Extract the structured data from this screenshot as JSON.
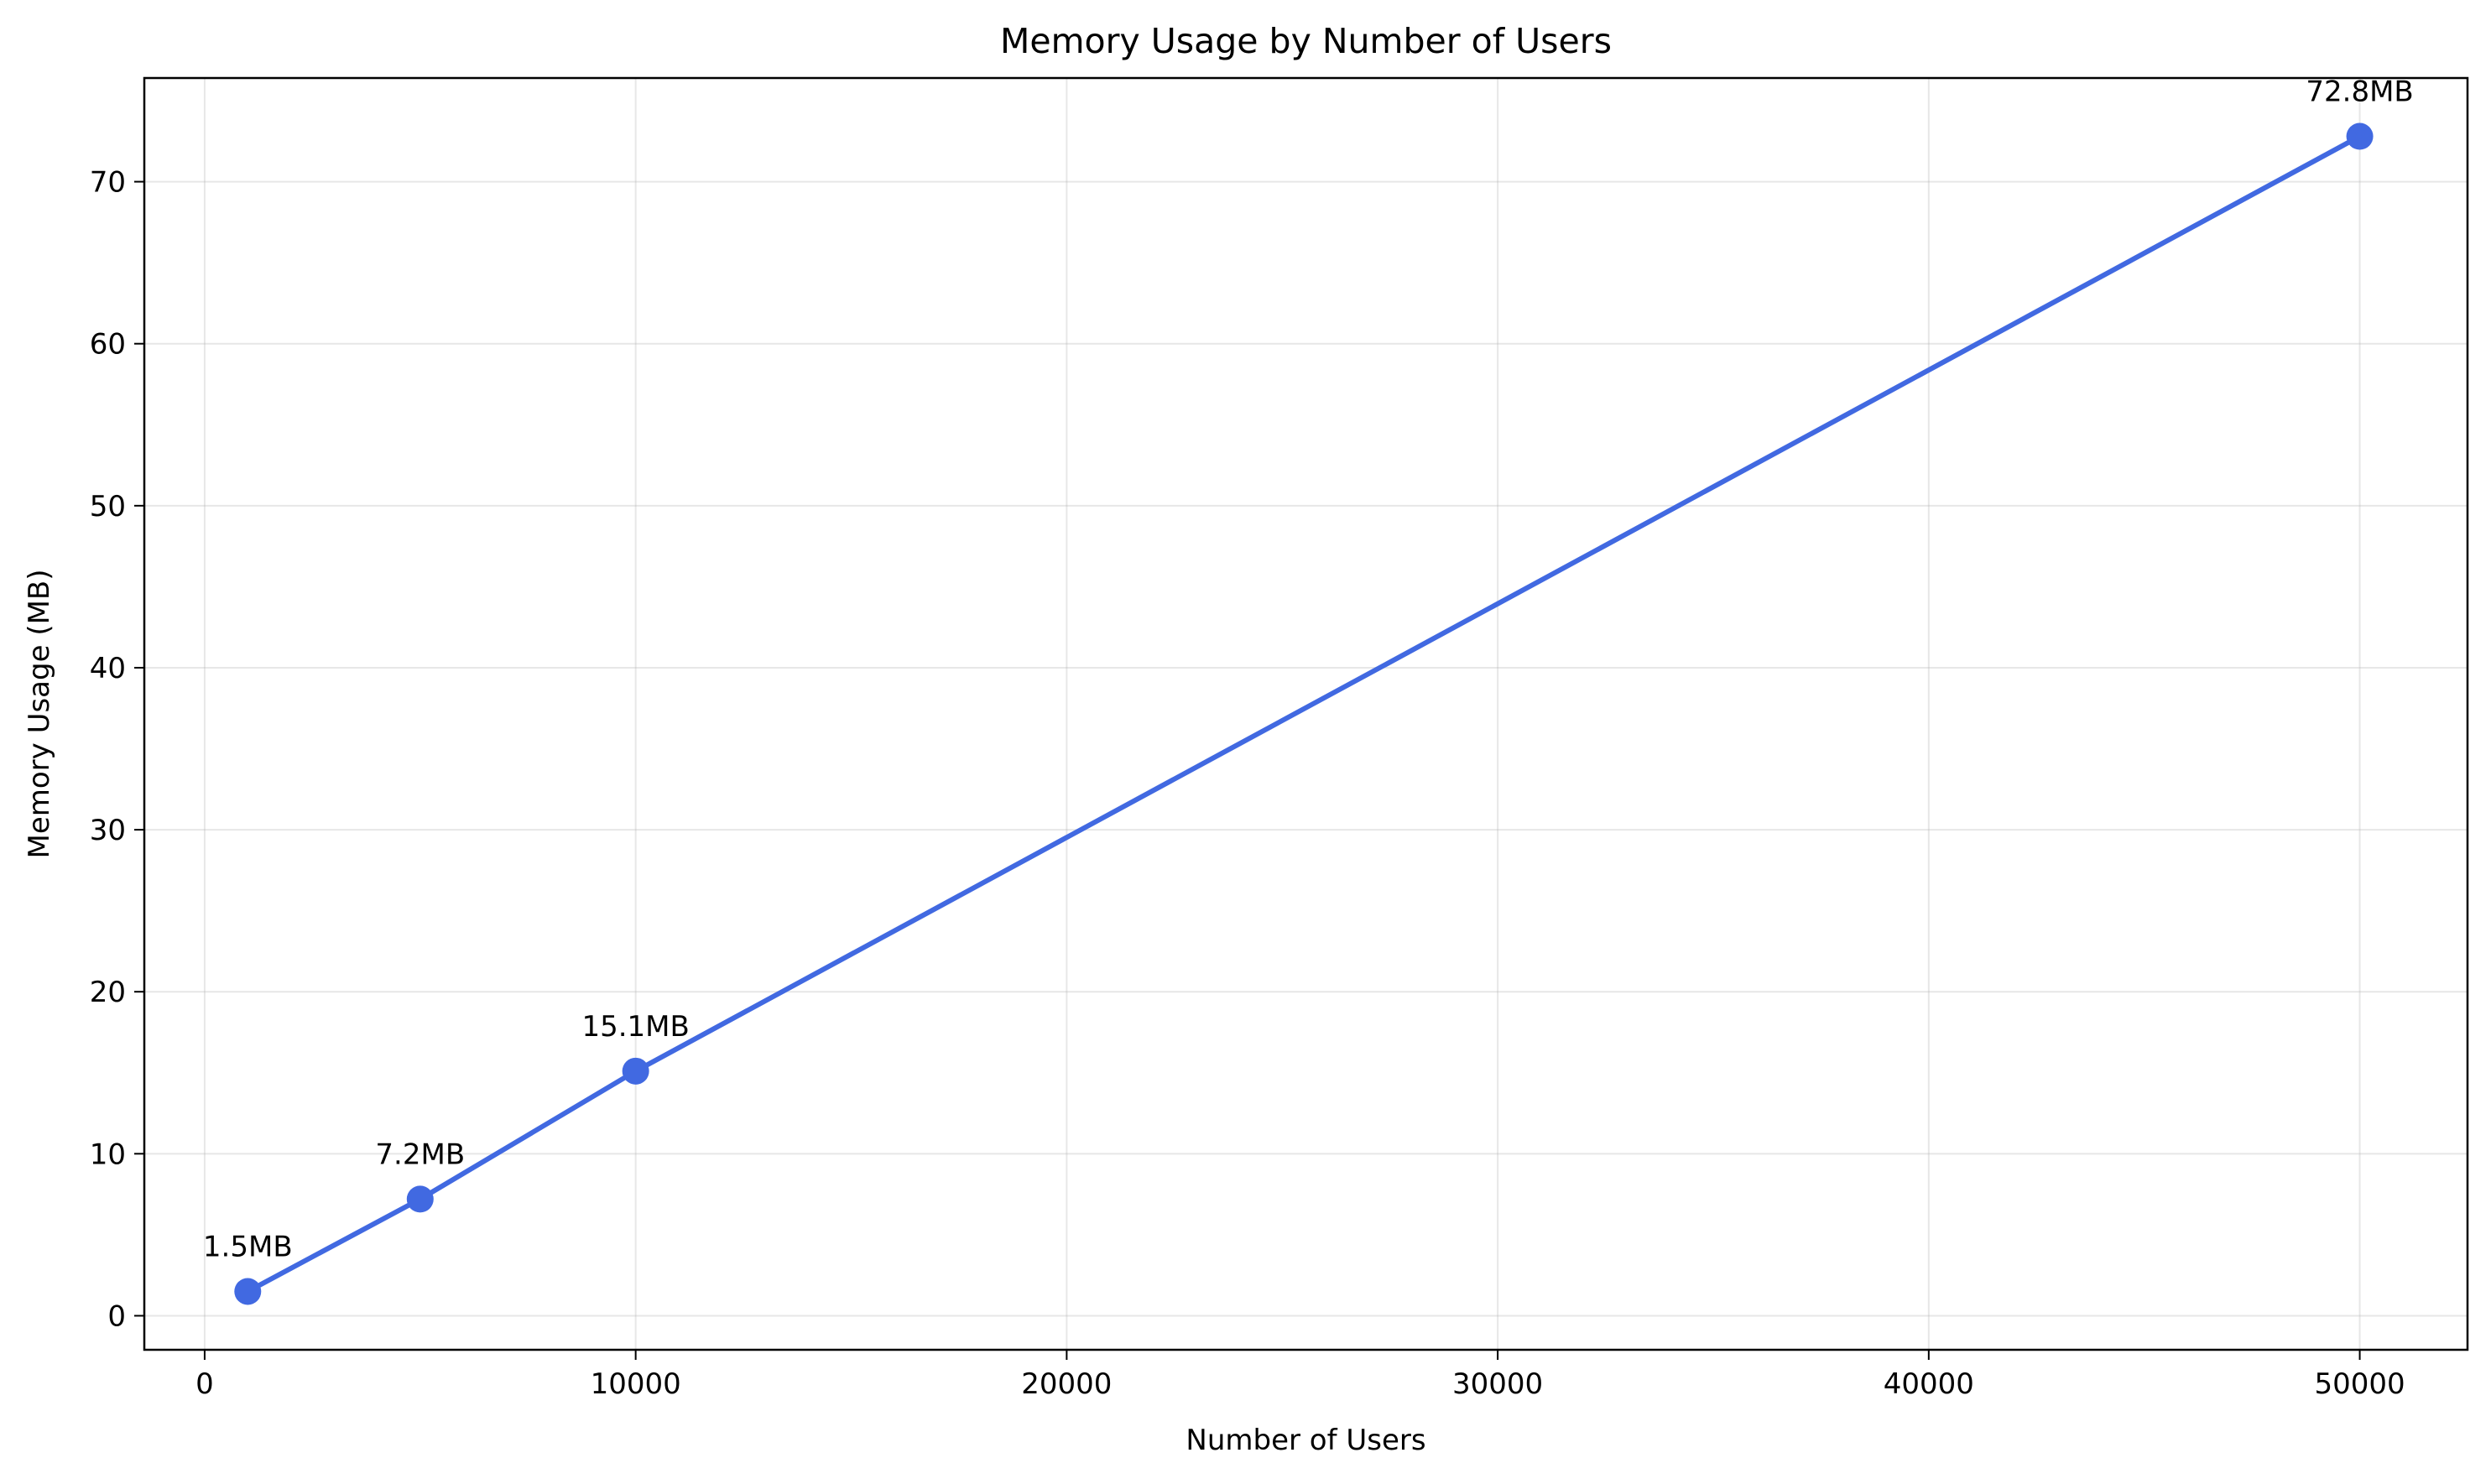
{
  "chart_data": {
    "type": "line",
    "title": "Memory Usage by Number of Users",
    "xlabel": "Number of Users",
    "ylabel": "Memory Usage (MB)",
    "xlim": [
      -1400,
      52500
    ],
    "ylim": [
      -2.1,
      76.4
    ],
    "x_ticks": [
      0,
      10000,
      20000,
      30000,
      40000,
      50000
    ],
    "y_ticks": [
      0,
      10,
      20,
      30,
      40,
      50,
      60,
      70
    ],
    "grid": true,
    "series": [
      {
        "color": "#4169E1",
        "points": [
          {
            "x": 1000,
            "y": 1.5,
            "label": "1.5MB"
          },
          {
            "x": 5000,
            "y": 7.2,
            "label": "7.2MB"
          },
          {
            "x": 10000,
            "y": 15.1,
            "label": "15.1MB"
          },
          {
            "x": 50000,
            "y": 72.8,
            "label": "72.8MB"
          }
        ]
      }
    ]
  }
}
